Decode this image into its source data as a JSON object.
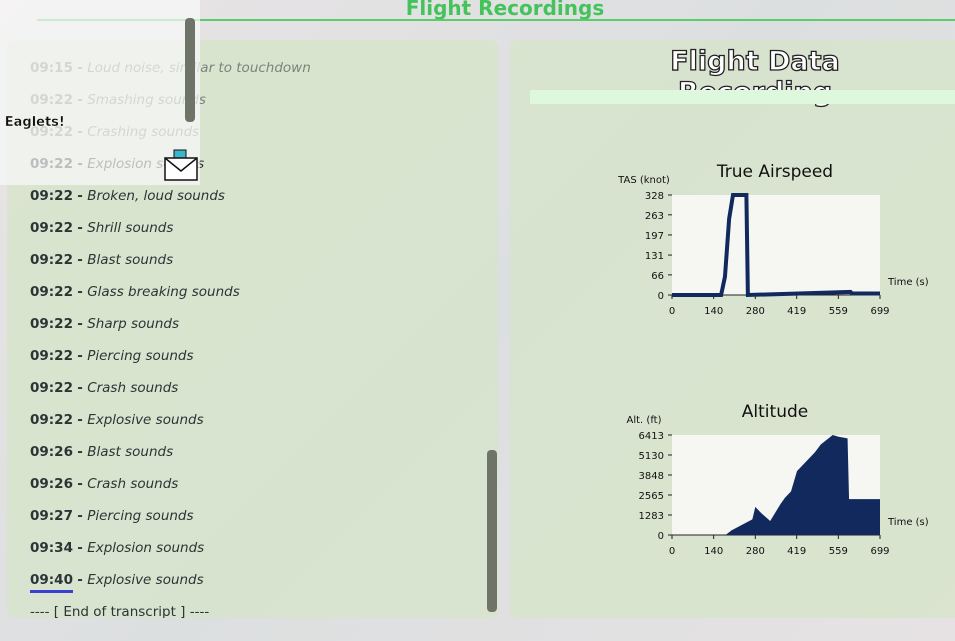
{
  "header": {
    "title": "Flight Recordings"
  },
  "overlay": {
    "text": "t Eaglets!"
  },
  "transcript": {
    "separator": "-",
    "entries": [
      {
        "time": "09:15",
        "text": "Loud noise, similar to touchdown"
      },
      {
        "time": "09:22",
        "text": "Smashing sounds"
      },
      {
        "time": "09:22",
        "text": "Crashing sounds"
      },
      {
        "time": "09:22",
        "text": "Explosion sounds"
      },
      {
        "time": "09:22",
        "text": "Broken, loud sounds"
      },
      {
        "time": "09:22",
        "text": "Shrill sounds"
      },
      {
        "time": "09:22",
        "text": "Blast sounds"
      },
      {
        "time": "09:22",
        "text": "Glass breaking sounds"
      },
      {
        "time": "09:22",
        "text": "Sharp sounds"
      },
      {
        "time": "09:22",
        "text": "Piercing sounds"
      },
      {
        "time": "09:22",
        "text": "Crash sounds"
      },
      {
        "time": "09:22",
        "text": "Explosive sounds"
      },
      {
        "time": "09:26",
        "text": "Blast sounds"
      },
      {
        "time": "09:26",
        "text": "Crash sounds"
      },
      {
        "time": "09:27",
        "text": "Piercing sounds"
      },
      {
        "time": "09:34",
        "text": "Explosion sounds"
      },
      {
        "time": "09:40",
        "text": "Explosive sounds"
      }
    ],
    "end": "---- [ End of transcript ] ----"
  },
  "recording": {
    "title": "Flight Data Recording",
    "charts": [
      {
        "type": "line",
        "title": "True Airspeed",
        "y_label": "TAS (knot)",
        "x_label": "Time (s)",
        "color": "#12295e",
        "x": [
          0,
          165,
          178,
          192,
          205,
          250,
          255,
          600,
          605,
          699
        ],
        "values": [
          0,
          0,
          60,
          250,
          328,
          328,
          0,
          10,
          5,
          5
        ],
        "xlim": [
          0,
          699
        ],
        "ylim": [
          0,
          328
        ],
        "xticks": [
          0,
          140,
          280,
          419,
          559,
          699
        ],
        "yticks": [
          0,
          66,
          131,
          197,
          263,
          328
        ]
      },
      {
        "type": "area",
        "title": "Altitude",
        "y_label": "Alt. (ft)",
        "x_label": "Time (s)",
        "color": "#12295e",
        "x": [
          0,
          180,
          200,
          250,
          270,
          280,
          300,
          330,
          365,
          380,
          400,
          420,
          450,
          480,
          500,
          540,
          560,
          590,
          595,
          610,
          699
        ],
        "values": [
          0,
          0,
          300,
          800,
          1000,
          1800,
          1400,
          900,
          2000,
          2400,
          2800,
          4100,
          4700,
          5300,
          5800,
          6413,
          6300,
          6200,
          2300,
          2300,
          2300
        ],
        "xlim": [
          0,
          699
        ],
        "ylim": [
          0,
          6413
        ],
        "xticks": [
          0,
          140,
          280,
          419,
          559,
          699
        ],
        "yticks": [
          0,
          1283,
          2565,
          3848,
          5130,
          6413
        ]
      }
    ]
  }
}
